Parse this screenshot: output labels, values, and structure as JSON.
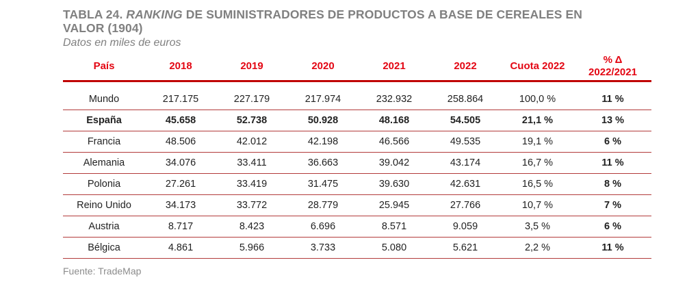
{
  "title": {
    "prefix": "TABLA 24. ",
    "italic": "RANKING",
    "rest": " DE SUMINISTRADORES DE PRODUCTOS A BASE DE CEREALES EN VALOR (1904)"
  },
  "subtitle": "Datos en miles de euros",
  "headers": {
    "country": "País",
    "y2018": "2018",
    "y2019": "2019",
    "y2020": "2020",
    "y2021": "2021",
    "y2022": "2022",
    "cuota": "Cuota 2022",
    "pct_line1": "% Δ",
    "pct_line2": "2022/2021"
  },
  "rows": [
    {
      "country": "Mundo",
      "y2018": "217.175",
      "y2019": "227.179",
      "y2020": "217.974",
      "y2021": "232.932",
      "y2022": "258.864",
      "cuota": "100,0 %",
      "pct": "11 %"
    },
    {
      "country": "España",
      "y2018": "45.658",
      "y2019": "52.738",
      "y2020": "50.928",
      "y2021": "48.168",
      "y2022": "54.505",
      "cuota": "21,1 %",
      "pct": "13 %"
    },
    {
      "country": "Francia",
      "y2018": "48.506",
      "y2019": "42.012",
      "y2020": "42.198",
      "y2021": "46.566",
      "y2022": "49.535",
      "cuota": "19,1 %",
      "pct": "6 %"
    },
    {
      "country": "Alemania",
      "y2018": "34.076",
      "y2019": "33.411",
      "y2020": "36.663",
      "y2021": "39.042",
      "y2022": "43.174",
      "cuota": "16,7 %",
      "pct": "11 %"
    },
    {
      "country": "Polonia",
      "y2018": "27.261",
      "y2019": "33.419",
      "y2020": "31.475",
      "y2021": "39.630",
      "y2022": "42.631",
      "cuota": "16,5 %",
      "pct": "8 %"
    },
    {
      "country": "Reino Unido",
      "y2018": "34.173",
      "y2019": "33.772",
      "y2020": "28.779",
      "y2021": "25.945",
      "y2022": "27.766",
      "cuota": "10,7 %",
      "pct": "7 %"
    },
    {
      "country": "Austria",
      "y2018": "8.717",
      "y2019": "8.423",
      "y2020": "6.696",
      "y2021": "8.571",
      "y2022": "9.059",
      "cuota": "3,5 %",
      "pct": "6 %"
    },
    {
      "country": "Bélgica",
      "y2018": "4.861",
      "y2019": "5.966",
      "y2020": "3.733",
      "y2021": "5.080",
      "y2022": "5.621",
      "cuota": "2,2 %",
      "pct": "11 %"
    }
  ],
  "source": "Fuente: TradeMap",
  "colors": {
    "header_red": "#e30613",
    "rule_red": "#c00000",
    "title_gray": "#808080"
  }
}
